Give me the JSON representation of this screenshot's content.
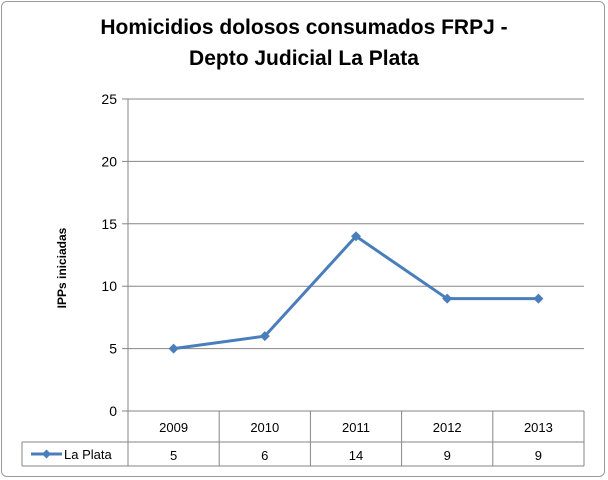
{
  "chart_data": {
    "type": "line",
    "title_lines": [
      "Homicidios dolosos consumados FRPJ -",
      "Depto Judicial La Plata"
    ],
    "xlabel": "",
    "ylabel": "IPPs iniciadas",
    "categories": [
      "2009",
      "2010",
      "2011",
      "2012",
      "2013"
    ],
    "series": [
      {
        "name": "La Plata",
        "values": [
          5,
          6,
          14,
          9,
          9
        ],
        "color": "#4a7ebb"
      }
    ],
    "ylim": [
      0,
      25
    ],
    "yticks": [
      0,
      5,
      10,
      15,
      20,
      25
    ],
    "grid": true,
    "legend_placement": "data-table",
    "data_table": true
  },
  "colors": {
    "line": "#4a7ebb",
    "grid": "#868686",
    "axis": "#868686"
  }
}
